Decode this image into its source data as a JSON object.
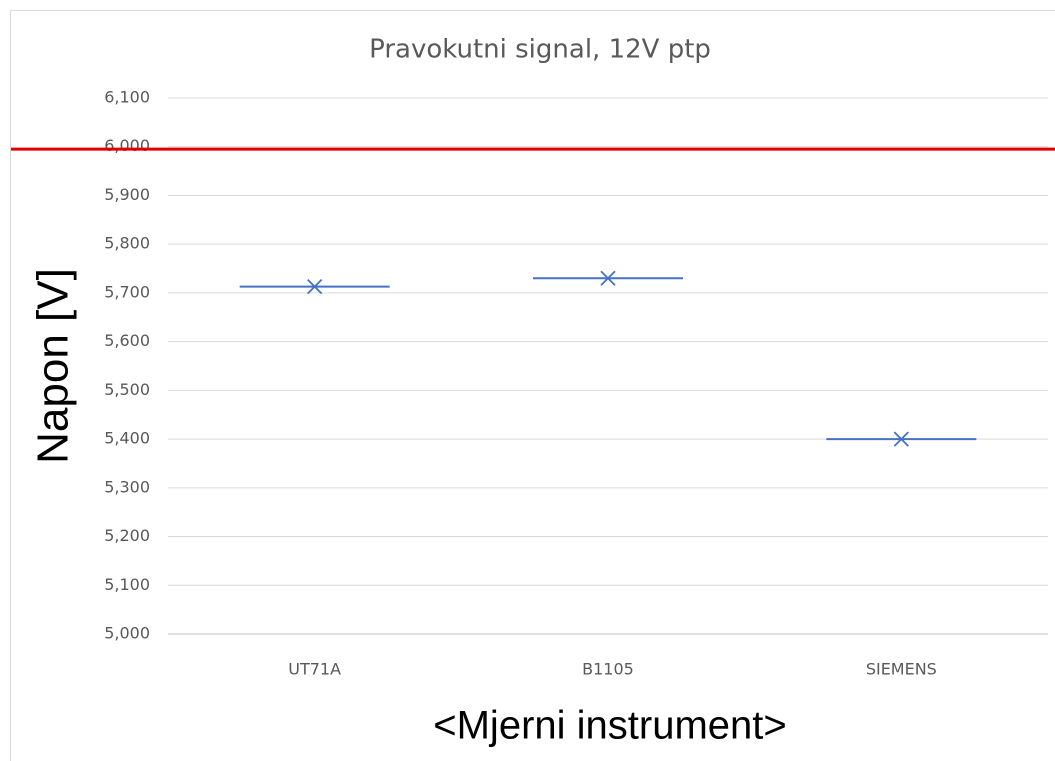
{
  "chart_data": {
    "type": "box",
    "title": "Pravokutni signal, 12V ptp",
    "y_label": "Napon [V]",
    "x_label": "<Mjerni instrument>",
    "categories": [
      "UT71A",
      "B1105",
      "SIEMENS"
    ],
    "values": [
      5.713,
      5.73,
      5.4
    ],
    "color": "#4472c4",
    "reference_line": {
      "value": 5.995,
      "color": "#e00000"
    },
    "ylim": [
      5.0,
      6.1
    ],
    "yticks": [
      {
        "value": 5.0,
        "label": "5,000"
      },
      {
        "value": 5.1,
        "label": "5,100"
      },
      {
        "value": 5.2,
        "label": "5,200"
      },
      {
        "value": 5.3,
        "label": "5,300"
      },
      {
        "value": 5.4,
        "label": "5,400"
      },
      {
        "value": 5.5,
        "label": "5,500"
      },
      {
        "value": 5.6,
        "label": "5,600"
      },
      {
        "value": 5.7,
        "label": "5,700"
      },
      {
        "value": 5.8,
        "label": "5,800"
      },
      {
        "value": 5.9,
        "label": "5,900"
      },
      {
        "value": 6.0,
        "label": "6,000"
      },
      {
        "value": 6.1,
        "label": "6,100"
      }
    ],
    "grid": true
  }
}
